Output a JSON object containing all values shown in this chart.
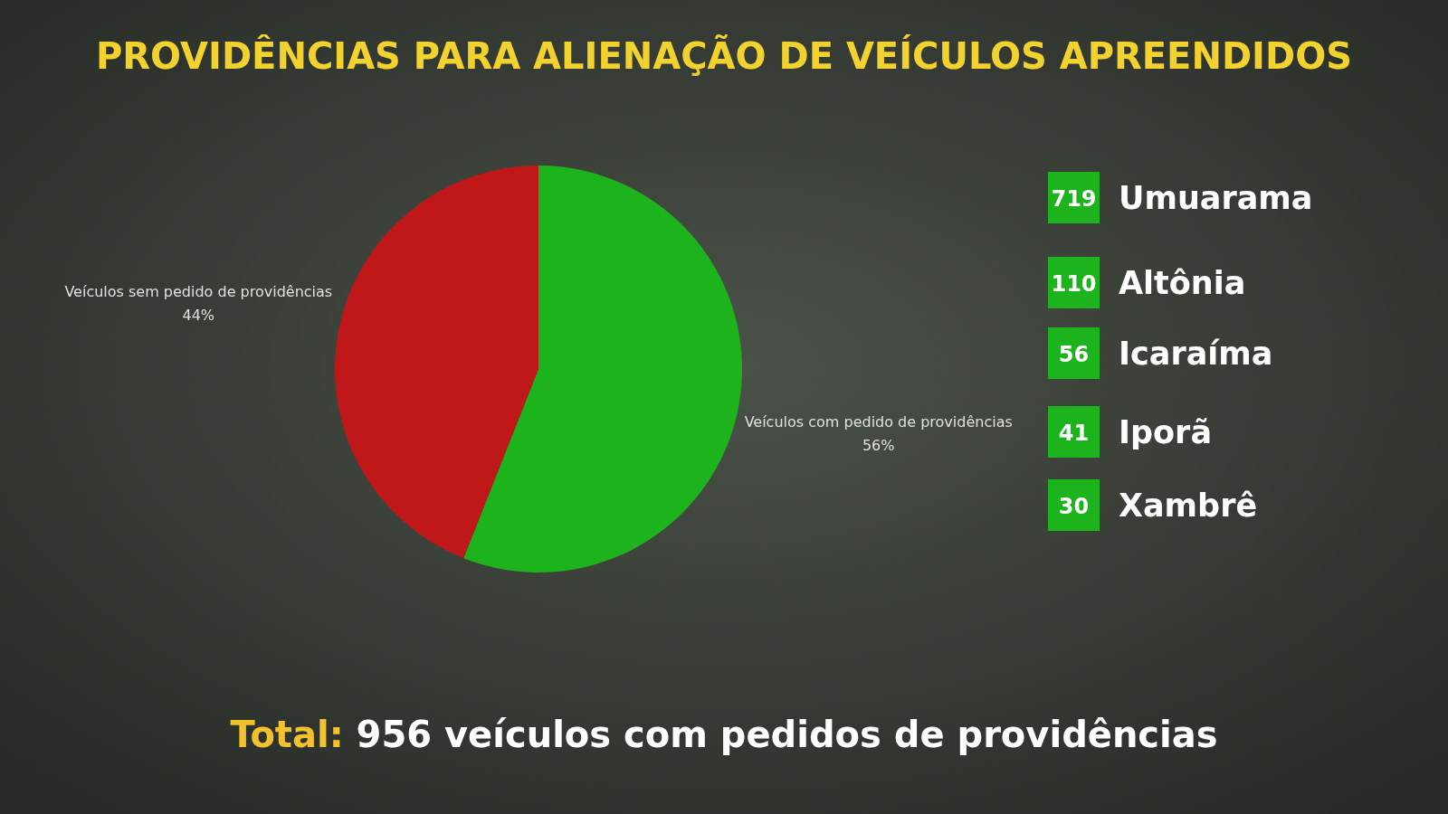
{
  "chart_data": [
    {
      "type": "pie",
      "title": "PROVIDÊNCIAS PARA ALIENAÇÃO DE VEÍCULOS APREENDIDOS",
      "categories": [
        "Veículos com pedido de providências",
        "Veículos sem pedido de providências"
      ],
      "values": [
        56,
        44
      ],
      "colors": [
        "#1db31d",
        "#c01818"
      ],
      "value_labels": [
        "56%",
        "44%"
      ],
      "annotations": [
        "Total: 956 veículos com pedidos de providências"
      ]
    },
    {
      "type": "other",
      "categories": [
        "Umuarama",
        "Altônia",
        "Icaraíma",
        "Iporã",
        "Xambrê"
      ],
      "values": [
        719,
        110,
        56,
        41,
        30
      ],
      "color": "#1db31d",
      "data_labels": true
    }
  ]
}
